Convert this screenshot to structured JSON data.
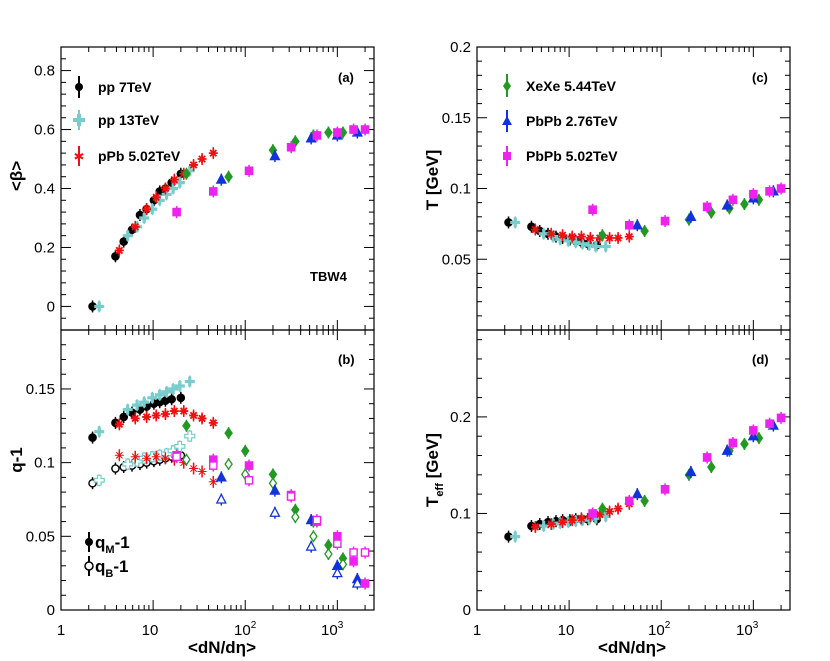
{
  "figure": {
    "x_axis_label": "<dN/dη>",
    "x_ticks": [
      "1",
      "10",
      "10",
      "10"
    ],
    "x_tick_exponents": [
      "",
      "",
      "2",
      "3"
    ],
    "q_legend": [
      "q",
      "q"
    ],
    "q_legend_subs": [
      "M",
      "B"
    ],
    "q_legend_suffix": [
      "-1",
      "-1"
    ]
  },
  "colors": {
    "pp7": "#000000",
    "pp13": "#77cccc",
    "pPb": "#ee1111",
    "XeXe": "#229922",
    "PbPb276": "#1133dd",
    "PbPb502": "#ee22ee"
  },
  "chart_data": [
    {
      "panel": "a",
      "type": "scatter",
      "tag": "(a)",
      "annotation": "TBW4",
      "ylabel": "<β>",
      "xscale": "log",
      "xlim": [
        1,
        2500
      ],
      "ylim": [
        -0.08,
        0.88
      ],
      "yticks": [
        0,
        0.2,
        0.4,
        0.6,
        0.8
      ],
      "ytick_labels": [
        "0",
        "0.2",
        "0.4",
        "0.6",
        "0.8"
      ],
      "legend": [
        "pp 7TeV",
        "pp 13TeV",
        "pPb 5.02TeV"
      ],
      "series": [
        {
          "name": "pp 7TeV",
          "color_key": "pp7",
          "marker": "circle",
          "x": [
            2.2,
            3.9,
            4.8,
            5.9,
            7.2,
            8.5,
            10.2,
            11.8,
            13.6,
            15.9,
            20.0
          ],
          "y": [
            0.0,
            0.17,
            0.22,
            0.26,
            0.31,
            0.33,
            0.36,
            0.39,
            0.4,
            0.42,
            0.45
          ]
        },
        {
          "name": "pp 13TeV",
          "color_key": "pp13",
          "marker": "cross",
          "x": [
            2.6,
            5.3,
            6.7,
            8.0,
            9.8,
            11.8,
            14.0,
            16.5,
            19.5,
            25.0
          ],
          "y": [
            0.0,
            0.24,
            0.27,
            0.3,
            0.33,
            0.36,
            0.38,
            0.4,
            0.42,
            0.46
          ]
        },
        {
          "name": "pPb 5.02TeV",
          "color_key": "pPb",
          "marker": "star",
          "x": [
            4.3,
            6.4,
            8.5,
            10.8,
            13.6,
            17.0,
            21.5,
            27.5,
            34.0,
            45.0
          ],
          "y": [
            0.19,
            0.27,
            0.33,
            0.37,
            0.4,
            0.43,
            0.45,
            0.48,
            0.5,
            0.52
          ]
        },
        {
          "name": "XeXe 5.44TeV",
          "color_key": "XeXe",
          "marker": "diamond",
          "x": [
            23,
            66,
            200,
            350,
            550,
            800,
            1150
          ],
          "y": [
            0.45,
            0.44,
            0.53,
            0.56,
            0.58,
            0.59,
            0.59
          ]
        },
        {
          "name": "PbPb 2.76TeV",
          "color_key": "PbPb276",
          "marker": "triangle",
          "x": [
            55,
            210,
            520,
            1000,
            1650
          ],
          "y": [
            0.43,
            0.51,
            0.57,
            0.58,
            0.59
          ]
        },
        {
          "name": "PbPb 5.02TeV",
          "color_key": "PbPb502",
          "marker": "square",
          "x": [
            18,
            45,
            110,
            315,
            600,
            1000,
            1500,
            2000
          ],
          "y": [
            0.32,
            0.39,
            0.46,
            0.54,
            0.58,
            0.59,
            0.6,
            0.6
          ]
        }
      ]
    },
    {
      "panel": "b",
      "type": "scatter",
      "tag": "(b)",
      "ylabel": "q-1",
      "xscale": "log",
      "xlim": [
        1,
        2500
      ],
      "ylim": [
        0,
        0.19
      ],
      "yticks": [
        0,
        0.05,
        0.1,
        0.15
      ],
      "ytick_labels": [
        "0",
        "0.05",
        "0.1",
        "0.15"
      ],
      "series": [
        {
          "name": "pp 7TeV q_M-1",
          "color_key": "pp7",
          "marker": "circle",
          "open": false,
          "x": [
            2.2,
            3.9,
            4.8,
            5.9,
            7.2,
            8.5,
            10.2,
            11.8,
            13.6,
            15.9,
            20.0
          ],
          "y": [
            0.117,
            0.127,
            0.131,
            0.134,
            0.136,
            0.138,
            0.14,
            0.141,
            0.142,
            0.143,
            0.144
          ]
        },
        {
          "name": "pp 7TeV q_B-1",
          "color_key": "pp7",
          "marker": "circle",
          "open": true,
          "x": [
            2.2,
            3.9,
            4.8,
            5.9,
            7.2,
            8.5,
            10.2,
            11.8,
            13.6,
            15.9,
            20.0
          ],
          "y": [
            0.086,
            0.096,
            0.097,
            0.098,
            0.099,
            0.1,
            0.101,
            0.102,
            0.103,
            0.104,
            0.105
          ]
        },
        {
          "name": "pp 13TeV q_M-1",
          "color_key": "pp13",
          "marker": "cross",
          "open": false,
          "x": [
            2.6,
            5.3,
            6.7,
            8.0,
            9.8,
            11.8,
            14.0,
            16.5,
            19.5,
            25.0
          ],
          "y": [
            0.121,
            0.136,
            0.139,
            0.141,
            0.144,
            0.146,
            0.148,
            0.15,
            0.152,
            0.155
          ]
        },
        {
          "name": "pp 13TeV q_B-1",
          "color_key": "pp13",
          "marker": "cross",
          "open": true,
          "x": [
            2.6,
            5.3,
            6.7,
            8.0,
            9.8,
            11.8,
            14.0,
            16.5,
            19.5,
            25.0
          ],
          "y": [
            0.088,
            0.099,
            0.101,
            0.103,
            0.104,
            0.105,
            0.106,
            0.108,
            0.111,
            0.118
          ]
        },
        {
          "name": "pPb 5.02TeV q_M-1",
          "color_key": "pPb",
          "marker": "star",
          "open": false,
          "x": [
            4.3,
            6.4,
            8.5,
            10.8,
            13.6,
            17.0,
            21.5,
            27.5,
            34.0,
            45.0
          ],
          "y": [
            0.126,
            0.13,
            0.131,
            0.132,
            0.133,
            0.135,
            0.135,
            0.132,
            0.13,
            0.127
          ]
        },
        {
          "name": "pPb 5.02TeV q_B-1",
          "color_key": "pPb",
          "marker": "star",
          "open": true,
          "x": [
            4.3,
            6.4,
            8.5,
            10.8,
            13.6,
            17.0,
            21.5,
            27.5,
            34.0,
            45.0
          ],
          "y": [
            0.105,
            0.104,
            0.103,
            0.104,
            0.103,
            0.102,
            0.1,
            0.096,
            0.094,
            0.087
          ]
        },
        {
          "name": "XeXe q_M-1",
          "color_key": "XeXe",
          "marker": "diamond",
          "open": false,
          "x": [
            23,
            66,
            100,
            200,
            350,
            550,
            800,
            1150
          ],
          "y": [
            0.125,
            0.12,
            0.108,
            0.092,
            0.068,
            0.06,
            0.044,
            0.035
          ]
        },
        {
          "name": "XeXe q_B-1",
          "color_key": "XeXe",
          "marker": "diamond",
          "open": true,
          "x": [
            23,
            66,
            100,
            200,
            350,
            550,
            800,
            1150
          ],
          "y": [
            0.102,
            0.099,
            0.092,
            0.086,
            0.063,
            0.05,
            0.038,
            0.031
          ]
        },
        {
          "name": "PbPb 2.76TeV q_M-1",
          "color_key": "PbPb276",
          "marker": "triangle",
          "open": false,
          "x": [
            55,
            210,
            520,
            1000,
            1650
          ],
          "y": [
            0.09,
            0.081,
            0.061,
            0.03,
            0.021
          ]
        },
        {
          "name": "PbPb 2.76TeV q_B-1",
          "color_key": "PbPb276",
          "marker": "triangle",
          "open": true,
          "x": [
            55,
            210,
            520,
            1000,
            1650
          ],
          "y": [
            0.075,
            0.066,
            0.043,
            0.025,
            0.018
          ]
        },
        {
          "name": "PbPb 5.02TeV q_M-1",
          "color_key": "PbPb502",
          "marker": "square",
          "open": false,
          "x": [
            18,
            45,
            110,
            315,
            600,
            1000,
            1500,
            2000
          ],
          "y": [
            0.105,
            0.102,
            0.098,
            0.078,
            0.06,
            0.05,
            0.033,
            0.018
          ]
        },
        {
          "name": "PbPb 5.02TeV q_B-1",
          "color_key": "PbPb502",
          "marker": "square",
          "open": true,
          "x": [
            18,
            45,
            110,
            315,
            600,
            1000,
            1500,
            2000
          ],
          "y": [
            0.104,
            0.098,
            0.088,
            0.077,
            0.061,
            0.045,
            0.039,
            0.039
          ]
        }
      ]
    },
    {
      "panel": "c",
      "type": "scatter",
      "tag": "(c)",
      "ylabel": "T [GeV]",
      "xscale": "log",
      "xlim": [
        1,
        2500
      ],
      "ylim": [
        0,
        0.2
      ],
      "yticks": [
        0.05,
        0.1,
        0.15,
        0.2
      ],
      "ytick_labels": [
        "0.05",
        "0.1",
        "0.15",
        "0.2"
      ],
      "legend": [
        "XeXe 5.44TeV",
        "PbPb 2.76TeV",
        "PbPb 5.02TeV"
      ],
      "series": [
        {
          "name": "pp 7TeV",
          "color_key": "pp7",
          "marker": "circle",
          "x": [
            2.2,
            3.9,
            4.8,
            5.9,
            7.2,
            8.5,
            10.2,
            11.8,
            13.6,
            15.9,
            20.0
          ],
          "y": [
            0.076,
            0.073,
            0.07,
            0.068,
            0.066,
            0.065,
            0.064,
            0.063,
            0.062,
            0.061,
            0.06
          ]
        },
        {
          "name": "pp 13TeV",
          "color_key": "pp13",
          "marker": "cross",
          "x": [
            2.6,
            5.3,
            6.7,
            8.0,
            9.8,
            11.8,
            14.0,
            16.5,
            19.5,
            25.0
          ],
          "y": [
            0.076,
            0.068,
            0.066,
            0.064,
            0.063,
            0.062,
            0.061,
            0.06,
            0.059,
            0.059
          ]
        },
        {
          "name": "pPb 5.02TeV",
          "color_key": "pPb",
          "marker": "star",
          "x": [
            4.3,
            6.4,
            8.5,
            10.8,
            13.6,
            17.0,
            21.5,
            27.5,
            34.0,
            45.0
          ],
          "y": [
            0.071,
            0.068,
            0.067,
            0.066,
            0.066,
            0.065,
            0.065,
            0.065,
            0.065,
            0.066
          ]
        },
        {
          "name": "XeXe 5.44TeV",
          "color_key": "XeXe",
          "marker": "diamond",
          "x": [
            23,
            66,
            200,
            350,
            550,
            800,
            1150
          ],
          "y": [
            0.067,
            0.07,
            0.078,
            0.083,
            0.086,
            0.089,
            0.092
          ]
        },
        {
          "name": "PbPb 2.76TeV",
          "color_key": "PbPb276",
          "marker": "triangle",
          "x": [
            55,
            210,
            520,
            1000,
            1650
          ],
          "y": [
            0.074,
            0.08,
            0.088,
            0.093,
            0.098
          ]
        },
        {
          "name": "PbPb 5.02TeV",
          "color_key": "PbPb502",
          "marker": "square",
          "x": [
            18,
            45,
            110,
            315,
            600,
            1000,
            1500,
            2000
          ],
          "y": [
            0.085,
            0.074,
            0.077,
            0.087,
            0.092,
            0.096,
            0.098,
            0.1
          ]
        }
      ]
    },
    {
      "panel": "d",
      "type": "scatter",
      "tag": "(d)",
      "ylabel": "T",
      "ylabel_sub": "eff",
      "ylabel_suffix": " [GeV]",
      "xscale": "log",
      "xlim": [
        1,
        2500
      ],
      "ylim": [
        0,
        0.29
      ],
      "yticks": [
        0,
        0.1,
        0.2
      ],
      "ytick_labels": [
        "0",
        "0.1",
        "0.2"
      ],
      "series": [
        {
          "name": "pp 7TeV",
          "color_key": "pp7",
          "marker": "circle",
          "x": [
            2.2,
            3.9,
            4.8,
            5.9,
            7.2,
            8.5,
            10.2,
            11.8,
            13.6,
            15.9,
            20.0
          ],
          "y": [
            0.076,
            0.087,
            0.089,
            0.091,
            0.092,
            0.093,
            0.093,
            0.094,
            0.094,
            0.094,
            0.094
          ]
        },
        {
          "name": "pp 13TeV",
          "color_key": "pp13",
          "marker": "cross",
          "x": [
            2.6,
            5.3,
            6.7,
            8.0,
            9.8,
            11.8,
            14.0,
            16.5,
            19.5,
            25.0
          ],
          "y": [
            0.076,
            0.087,
            0.089,
            0.09,
            0.091,
            0.092,
            0.093,
            0.094,
            0.095,
            0.097
          ]
        },
        {
          "name": "pPb 5.02TeV",
          "color_key": "pPb",
          "marker": "star",
          "x": [
            4.3,
            6.4,
            8.5,
            10.8,
            13.6,
            17.0,
            21.5,
            27.5,
            34.0,
            45.0
          ],
          "y": [
            0.086,
            0.089,
            0.091,
            0.093,
            0.095,
            0.097,
            0.099,
            0.102,
            0.105,
            0.11
          ]
        },
        {
          "name": "XeXe 5.44TeV",
          "color_key": "XeXe",
          "marker": "diamond",
          "x": [
            23,
            66,
            200,
            350,
            550,
            800,
            1150
          ],
          "y": [
            0.105,
            0.113,
            0.14,
            0.148,
            0.165,
            0.172,
            0.178
          ]
        },
        {
          "name": "PbPb 2.76TeV",
          "color_key": "PbPb276",
          "marker": "triangle",
          "x": [
            55,
            210,
            520,
            1000,
            1650
          ],
          "y": [
            0.12,
            0.143,
            0.165,
            0.18,
            0.191
          ]
        },
        {
          "name": "PbPb 5.02TeV",
          "color_key": "PbPb502",
          "marker": "square",
          "x": [
            18,
            45,
            110,
            315,
            600,
            1000,
            1500,
            2000
          ],
          "y": [
            0.1,
            0.113,
            0.125,
            0.158,
            0.173,
            0.186,
            0.193,
            0.199
          ]
        }
      ]
    }
  ]
}
